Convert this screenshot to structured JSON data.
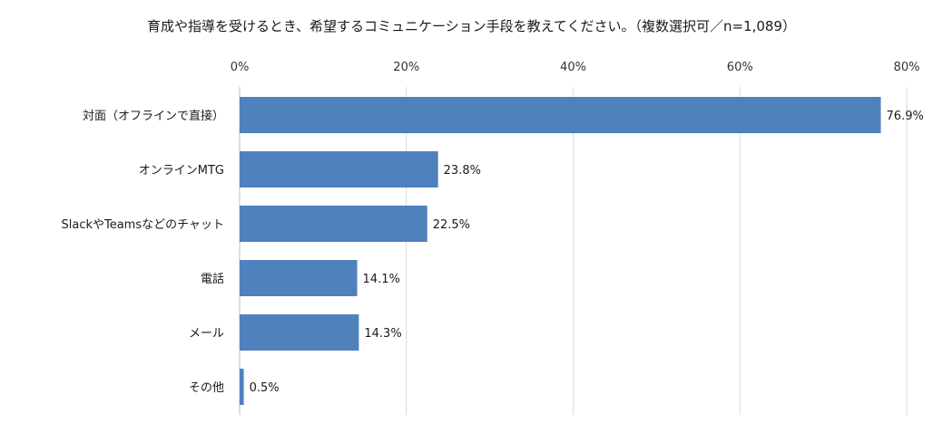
{
  "chart_data": {
    "type": "bar",
    "orientation": "horizontal",
    "title": "育成や指導を受けるとき、希望するコミュニケーション手段を教えてください。（複数選択可／n=1,089）",
    "categories": [
      "対面（オフラインで直接）",
      "オンラインMTG",
      "SlackやTeamsなどのチャット",
      "電話",
      "メール",
      "その他"
    ],
    "values": [
      76.9,
      23.8,
      22.5,
      14.1,
      14.3,
      0.5
    ],
    "value_labels": [
      "76.9%",
      "23.8%",
      "22.5%",
      "14.1%",
      "14.3%",
      "0.5%"
    ],
    "xlim": [
      0,
      80
    ],
    "xticks": [
      0,
      20,
      40,
      60,
      80
    ],
    "xtick_labels": [
      "0%",
      "20%",
      "40%",
      "60%",
      "80%"
    ],
    "xaxis_position": "top",
    "grid": true,
    "bar_color": "#4f81bd",
    "grid_color": "#d9d9d9"
  }
}
